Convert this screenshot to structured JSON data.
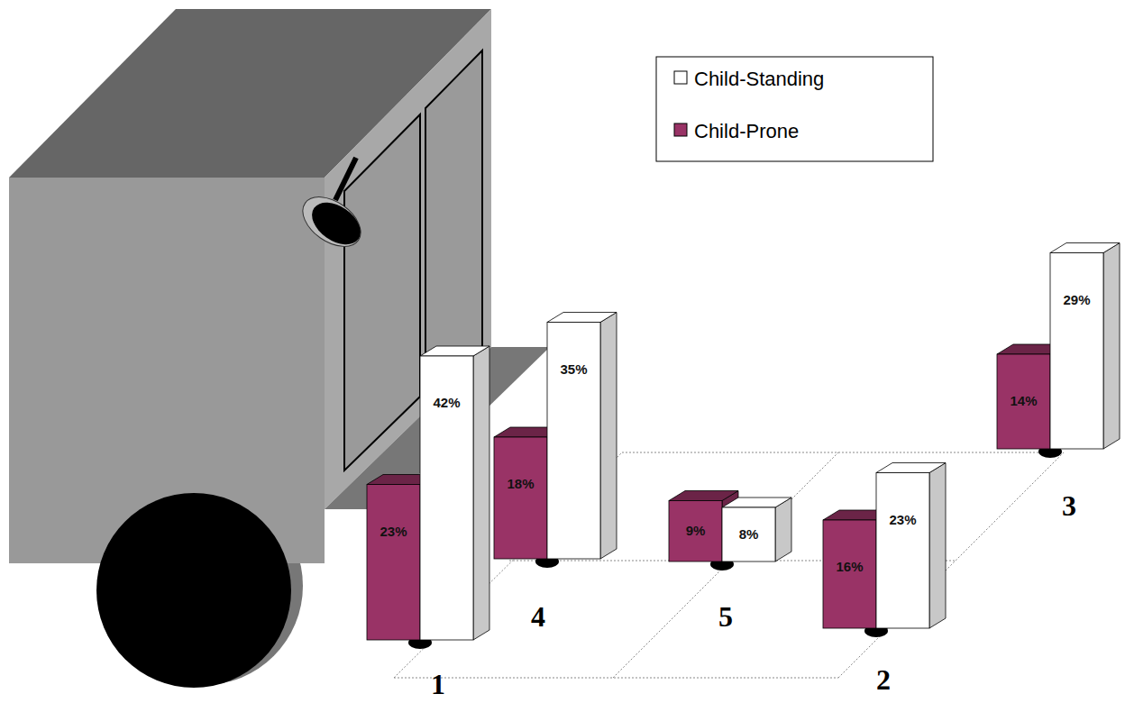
{
  "chart_data": {
    "type": "bar",
    "categories": [
      "1",
      "2",
      "3",
      "4",
      "5"
    ],
    "series": [
      {
        "name": "Child-Standing",
        "color": "#ffffff",
        "values": [
          42,
          23,
          29,
          35,
          8
        ],
        "value_labels": [
          "42%",
          "23%",
          "29%",
          "35%",
          "8%"
        ]
      },
      {
        "name": "Child-Prone",
        "color": "#993366",
        "values": [
          23,
          16,
          14,
          18,
          9
        ],
        "value_labels": [
          "23%",
          "16%",
          "14%",
          "18%",
          "9%"
        ]
      }
    ],
    "data_labels": true,
    "tick_labels": false,
    "legend": "upper right"
  }
}
